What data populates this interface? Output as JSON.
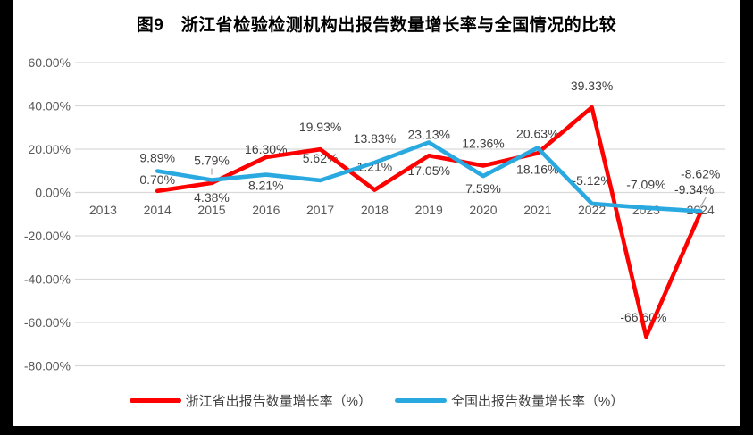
{
  "frame": {
    "background": "#FFFFFF",
    "border_color": "#000000"
  },
  "chart_data": {
    "type": "line",
    "title": "图9　浙江省检验检测机构出报告数量增长率与全国情况的比较",
    "xlabel": "",
    "ylabel": "",
    "categories": [
      "2013",
      "2014",
      "2015",
      "2016",
      "2017",
      "2018",
      "2019",
      "2020",
      "2021",
      "2022",
      "2023",
      "2024"
    ],
    "y_tick_labels": [
      "60.00%",
      "40.00%",
      "20.00%",
      "0.00%",
      "-20.00%",
      "-40.00%",
      "-60.00%",
      "-80.00%"
    ],
    "y_tick_values": [
      60,
      40,
      20,
      0,
      -20,
      -40,
      -60,
      -80
    ],
    "ylim": [
      -80,
      60
    ],
    "grid": true,
    "legend_position": "bottom",
    "gridline_color": "#D9D9D9",
    "axis_label_color": "#595959",
    "data_label_color": "#404040",
    "leader_line_color": "#A6A6A6",
    "series": [
      {
        "name": "浙江省出报告数量增长率（%）",
        "color": "#FE0000",
        "values": [
          null,
          0.7,
          4.38,
          16.3,
          19.93,
          1.21,
          17.05,
          12.36,
          18.16,
          39.33,
          -66.6,
          -9.34
        ],
        "labels": [
          "",
          "0.70%",
          "4.38%",
          "16.30%",
          "19.93%",
          "1.21%",
          "17.05%",
          "12.36%",
          "18.16%",
          "39.33%",
          "-66.60%",
          "-9.34%"
        ],
        "label_dx": [
          0,
          0,
          0,
          0,
          0,
          0,
          0,
          0,
          0,
          0,
          -3,
          -7
        ],
        "label_dy": [
          0,
          -8,
          21,
          -4,
          -20,
          -21,
          22,
          -20,
          23,
          -19,
          -17,
          -21
        ],
        "leaders": {
          "11": [
            [
              6,
              -17
            ],
            [
              -2,
              -3
            ]
          ]
        }
      },
      {
        "name": "全国出报告数量增长率（%）",
        "color": "#29A9E0",
        "values": [
          null,
          9.89,
          5.79,
          8.21,
          5.62,
          13.83,
          23.13,
          7.59,
          20.63,
          -5.12,
          -7.09,
          -8.62
        ],
        "labels": [
          "",
          "9.89%",
          "5.79%",
          "8.21%",
          "5.62%",
          "13.83%",
          "23.13%",
          "7.59%",
          "20.63%",
          "-5.12%",
          "-7.09%",
          "-8.62%"
        ],
        "label_dx": [
          0,
          0,
          0,
          0,
          0,
          0,
          0,
          0,
          0,
          0,
          0,
          0
        ],
        "label_dy": [
          0,
          -10,
          -17,
          17,
          -20,
          -22,
          -4,
          19,
          -11,
          -21,
          -21,
          -37
        ],
        "leaders": {
          "2": [
            [
              0,
              -13
            ],
            [
              0,
              -6
            ]
          ]
        }
      }
    ]
  }
}
